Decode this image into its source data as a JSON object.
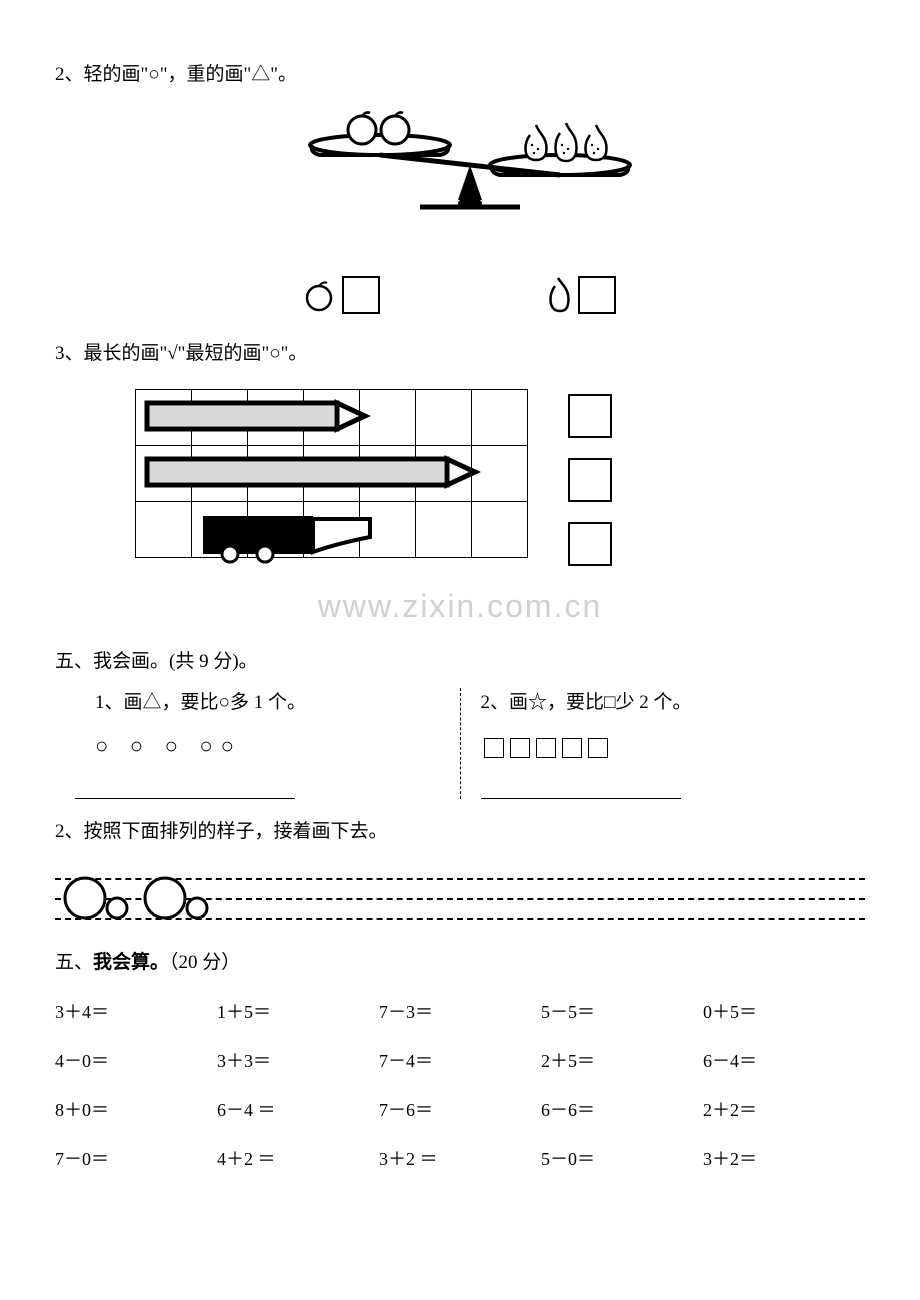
{
  "q2": {
    "text": "2、轻的画\"○\"，重的画\"△\"。"
  },
  "q3": {
    "text": "3、最长的画\"√\"最短的画\"○\"。"
  },
  "watermark": "www.zixin.com.cn",
  "section5a": {
    "title": "五、我会画。(共 9 分)。",
    "sub1": "1、画△，要比○多 1 个。",
    "sub1_shapes": "○ ○ ○ ○○",
    "sub2": "2、画☆，要比□少 2 个。"
  },
  "q2b": {
    "text": "2、按照下面排列的样子，接着画下去。"
  },
  "section5b": {
    "prefix": "五、",
    "bold": "我会算。",
    "suffix": "（20 分）"
  },
  "math": {
    "rows": [
      [
        "3＋4＝",
        "1＋5＝",
        "7－3＝",
        "5－5＝",
        "0＋5＝"
      ],
      [
        "4－0＝",
        "3＋3＝",
        "7－4＝",
        "2＋5＝",
        "6－4＝"
      ],
      [
        "8＋0＝",
        "6－4 ＝",
        "7－6＝",
        "6－6＝",
        "2＋2＝"
      ],
      [
        "7－0＝",
        "4＋2 ＝",
        "3＋2 ＝",
        "5－0＝",
        "3＋2＝"
      ]
    ]
  }
}
